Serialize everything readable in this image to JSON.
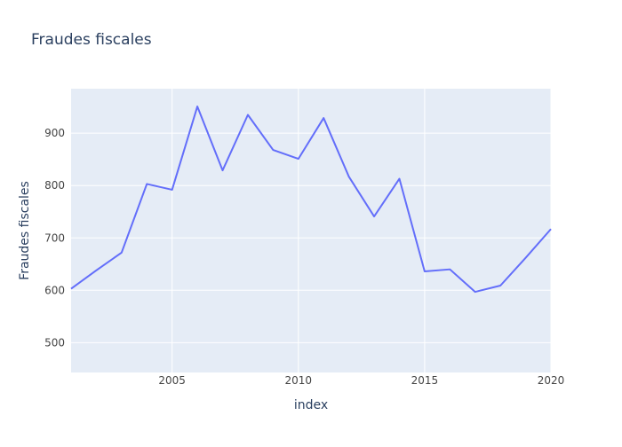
{
  "chart_data": {
    "type": "line",
    "title": "Fraudes fiscales",
    "xlabel": "index",
    "ylabel": "Fraudes fiscales",
    "xlim": [
      2001,
      2020
    ],
    "ylim": [
      443,
      985
    ],
    "x_ticks": [
      2005,
      2010,
      2015,
      2020
    ],
    "y_ticks": [
      500,
      600,
      700,
      800,
      900
    ],
    "grid": true,
    "colors": {
      "line": "#636efa",
      "plot_bg": "#e5ecf6",
      "grid": "#ffffff",
      "text": "#2a3f5f",
      "axis_text": "#444444"
    },
    "series": [
      {
        "x": [
          2001,
          2002,
          2003,
          2004,
          2005,
          2006,
          2007,
          2008,
          2009,
          2010,
          2011,
          2012,
          2013,
          2014,
          2015,
          2016,
          2017,
          2018,
          2019,
          2020
        ],
        "values": [
          603,
          638,
          672,
          803,
          792,
          951,
          829,
          935,
          868,
          851,
          929,
          817,
          741,
          813,
          636,
          640,
          597,
          609,
          662,
          717
        ]
      }
    ]
  }
}
